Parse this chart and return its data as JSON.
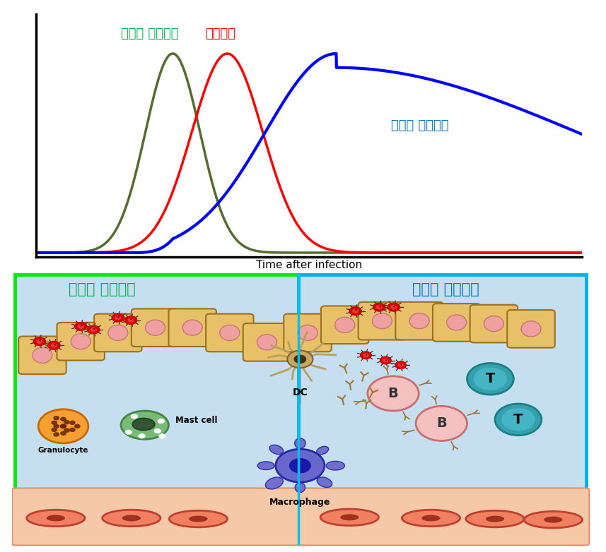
{
  "fig_width": 8.57,
  "fig_height": 7.82,
  "bg_color": "#ffffff",
  "top_panel_title_innate": "내재적 면역반응",
  "top_panel_title_innate_color": "#00b050",
  "top_panel_title_virus": "바이러스",
  "top_panel_title_virus_color": "#ff0000",
  "top_panel_title_adaptive": "적응성 면역반응",
  "top_panel_title_adaptive_color": "#0070c0",
  "xlabel": "Time after infection",
  "innate_curve_color": "#556b2f",
  "virus_curve_color": "#ff0000",
  "adaptive_curve_color": "#0000ff",
  "bottom_left_title": "내재적 면역반응",
  "bottom_left_title_color": "#00b050",
  "bottom_right_title": "적응성 면역반응",
  "bottom_right_title_color": "#0070c0",
  "left_box_color": "#00ee00",
  "right_box_color": "#00b0f0",
  "bg_inner_color": "#c5dff0"
}
